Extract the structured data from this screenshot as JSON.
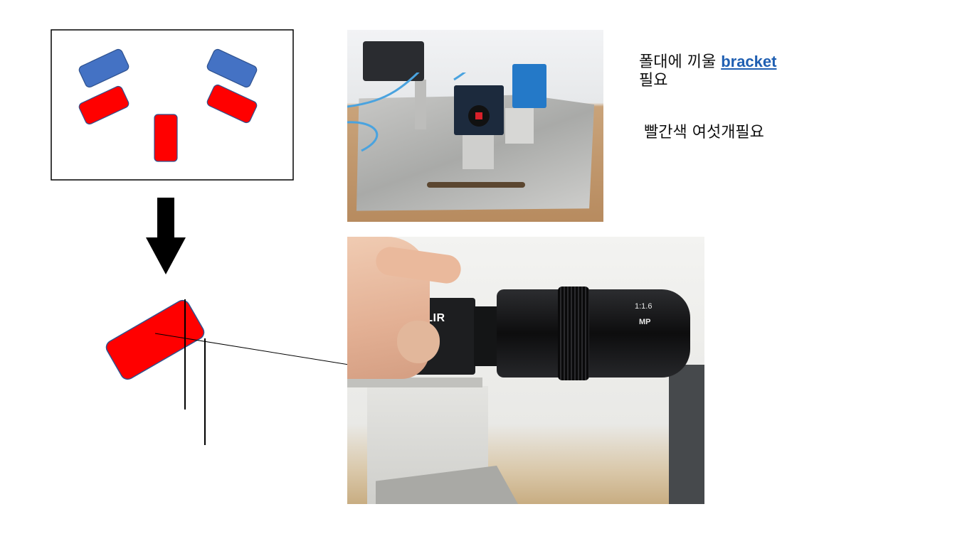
{
  "colors": {
    "blue_camera": "#4472c4",
    "red_camera": "#ff0000",
    "outline": "#000000",
    "link": "#1f5fb2"
  },
  "notes": {
    "line1_prefix": "폴대에 끼울 ",
    "line1_link": "bracket",
    "line2": "필요",
    "second": "빨간색 여섯개필요"
  },
  "photos": {
    "rig_photo": "camera-rig-photo",
    "flir_photo": "flir-camera-photo",
    "flir_brand": "FLIR",
    "lens_text1": "1:1.6",
    "lens_text2": "MP"
  },
  "icons": {
    "arrow": "down-arrow-icon"
  }
}
